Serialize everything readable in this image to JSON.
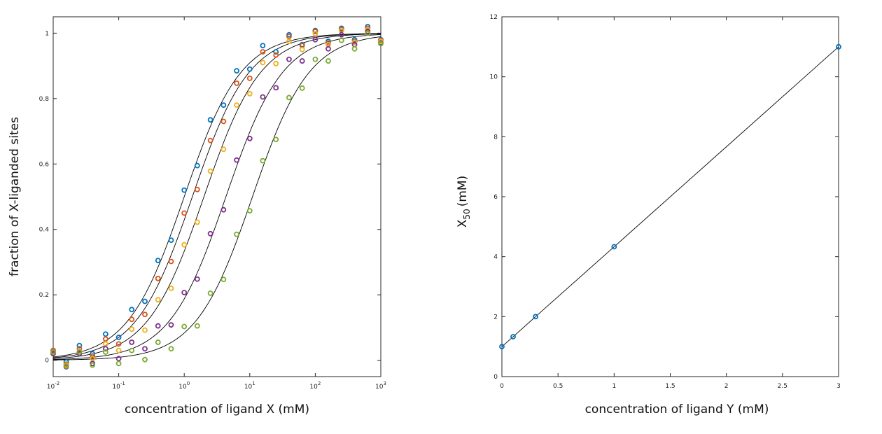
{
  "chart_data": [
    {
      "type": "scatter",
      "xscale": "log",
      "xlim": [
        0.01,
        1000
      ],
      "ylim": [
        -0.05,
        1.05
      ],
      "xlabel": "concentration of ligand X (mM)",
      "ylabel": "fraction of X-liganded sites",
      "xticks": [
        {
          "v": 0.01,
          "b": "10",
          "e": "-2"
        },
        {
          "v": 0.1,
          "b": "10",
          "e": "-1"
        },
        {
          "v": 1,
          "b": "10",
          "e": "0"
        },
        {
          "v": 10,
          "b": "10",
          "e": "1"
        },
        {
          "v": 100,
          "b": "10",
          "e": "2"
        },
        {
          "v": 1000,
          "b": "10",
          "e": "3"
        }
      ],
      "yticks": [
        {
          "v": 0,
          "label": "0"
        },
        {
          "v": 0.2,
          "label": "0.2"
        },
        {
          "v": 0.4,
          "label": "0.4"
        },
        {
          "v": 0.6,
          "label": "0.6"
        },
        {
          "v": 0.8,
          "label": "0.8"
        },
        {
          "v": 1,
          "label": "1"
        }
      ],
      "grid": false,
      "fit_curves": {
        "x50": [
          1.0,
          1.33,
          2.0,
          4.33,
          11.0
        ],
        "hill": 1.0,
        "color": "#000000"
      },
      "x": [
        0.01,
        0.0158,
        0.0251,
        0.0398,
        0.0631,
        0.1,
        0.158,
        0.251,
        0.398,
        0.631,
        1.0,
        1.58,
        2.51,
        3.98,
        6.31,
        10.0,
        15.8,
        25.1,
        39.8,
        63.1,
        100,
        158,
        251,
        398,
        631,
        1000
      ],
      "series": [
        {
          "color": "#0072BD",
          "values": [
            0.03,
            -0.005,
            0.045,
            0.02,
            0.08,
            0.07,
            0.155,
            0.18,
            0.305,
            0.367,
            0.52,
            0.595,
            0.735,
            0.78,
            0.885,
            0.89,
            0.962,
            0.943,
            0.995,
            0.965,
            1.008,
            0.975,
            1.015,
            0.98,
            1.02,
            0.98
          ]
        },
        {
          "color": "#D95319",
          "values": [
            0.03,
            -0.012,
            0.035,
            0.013,
            0.065,
            0.05,
            0.125,
            0.14,
            0.25,
            0.302,
            0.45,
            0.522,
            0.672,
            0.73,
            0.847,
            0.862,
            0.943,
            0.933,
            0.99,
            0.962,
            1.005,
            0.97,
            1.012,
            0.975,
            1.015,
            0.978
          ]
        },
        {
          "color": "#EDB120",
          "values": [
            0.025,
            -0.015,
            0.027,
            0.005,
            0.05,
            0.03,
            0.095,
            0.092,
            0.185,
            0.22,
            0.353,
            0.422,
            0.578,
            0.645,
            0.78,
            0.815,
            0.91,
            0.907,
            0.975,
            0.95,
            0.998,
            0.965,
            1.008,
            0.972,
            1.01,
            0.975
          ]
        },
        {
          "color": "#7E2F8E",
          "values": [
            0.02,
            -0.02,
            0.02,
            -0.01,
            0.035,
            0.005,
            0.055,
            0.035,
            0.105,
            0.108,
            0.207,
            0.248,
            0.387,
            0.46,
            0.612,
            0.678,
            0.805,
            0.833,
            0.92,
            0.915,
            0.98,
            0.952,
            0.995,
            0.965,
            1.005,
            0.97
          ]
        },
        {
          "color": "#77AC30",
          "values": [
            0.025,
            -0.018,
            0.025,
            -0.015,
            0.025,
            -0.01,
            0.03,
            0.002,
            0.055,
            0.035,
            0.103,
            0.105,
            0.205,
            0.247,
            0.385,
            0.457,
            0.61,
            0.675,
            0.803,
            0.832,
            0.92,
            0.915,
            0.978,
            0.952,
            1.0,
            0.968
          ]
        }
      ]
    },
    {
      "type": "line",
      "xlim": [
        0,
        3
      ],
      "ylim": [
        0,
        12
      ],
      "xlabel": "concentration of ligand Y (mM)",
      "ylabel_main": "X",
      "ylabel_sub": "50",
      "ylabel_suffix": "(mM)",
      "xticks": [
        {
          "v": 0,
          "label": "0"
        },
        {
          "v": 0.5,
          "label": "0.5"
        },
        {
          "v": 1,
          "label": "1"
        },
        {
          "v": 1.5,
          "label": "1.5"
        },
        {
          "v": 2,
          "label": "2"
        },
        {
          "v": 2.5,
          "label": "2.5"
        },
        {
          "v": 3,
          "label": "3"
        }
      ],
      "yticks": [
        {
          "v": 0,
          "label": "0"
        },
        {
          "v": 2,
          "label": "2"
        },
        {
          "v": 4,
          "label": "4"
        },
        {
          "v": 6,
          "label": "6"
        },
        {
          "v": 8,
          "label": "8"
        },
        {
          "v": 10,
          "label": "10"
        },
        {
          "v": 12,
          "label": "12"
        }
      ],
      "grid": false,
      "line_color": "#000000",
      "marker_color": "#0072BD",
      "x": [
        0,
        0.1,
        0.3,
        1,
        3
      ],
      "y": [
        1.0,
        1.33,
        2.0,
        4.33,
        11.0
      ]
    }
  ]
}
